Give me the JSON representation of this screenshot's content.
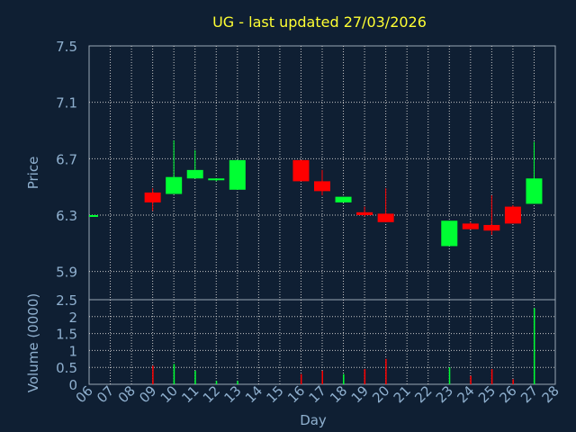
{
  "chart_data": {
    "title": "UG - last updated 27/03/2026",
    "colors": {
      "background": "#0f1f33",
      "up": "#00ff33",
      "down": "#ff0000",
      "title": "#ffff33",
      "text": "#8fb0cf"
    },
    "price_panel": {
      "type": "candlestick",
      "ylabel": "Price",
      "ylim": [
        5.7,
        7.5
      ],
      "yticks": [
        "5.9",
        "6.3",
        "6.7",
        "7.1",
        "7.5"
      ],
      "grid": true,
      "candles": [
        {
          "day": "06",
          "open": 6.3,
          "high": 6.3,
          "low": 6.3,
          "close": 6.3
        },
        {
          "day": "09",
          "open": 6.46,
          "high": 6.49,
          "low": 6.33,
          "close": 6.39
        },
        {
          "day": "10",
          "open": 6.45,
          "high": 6.83,
          "low": 6.45,
          "close": 6.57
        },
        {
          "day": "11",
          "open": 6.56,
          "high": 6.76,
          "low": 6.56,
          "close": 6.62
        },
        {
          "day": "12",
          "open": 6.55,
          "high": 6.56,
          "low": 6.54,
          "close": 6.56
        },
        {
          "day": "13",
          "open": 6.48,
          "high": 6.69,
          "low": 6.48,
          "close": 6.69
        },
        {
          "day": "16",
          "open": 6.69,
          "high": 6.69,
          "low": 6.54,
          "close": 6.54
        },
        {
          "day": "17",
          "open": 6.54,
          "high": 6.62,
          "low": 6.44,
          "close": 6.47
        },
        {
          "day": "18",
          "open": 6.39,
          "high": 6.43,
          "low": 6.39,
          "close": 6.43
        },
        {
          "day": "19",
          "open": 6.32,
          "high": 6.36,
          "low": 6.29,
          "close": 6.3
        },
        {
          "day": "20",
          "open": 6.31,
          "high": 6.49,
          "low": 6.25,
          "close": 6.25
        },
        {
          "day": "23",
          "open": 6.08,
          "high": 6.26,
          "low": 6.08,
          "close": 6.26
        },
        {
          "day": "24",
          "open": 6.24,
          "high": 6.25,
          "low": 6.2,
          "close": 6.2
        },
        {
          "day": "25",
          "open": 6.23,
          "high": 6.44,
          "low": 6.16,
          "close": 6.19
        },
        {
          "day": "26",
          "open": 6.36,
          "high": 6.37,
          "low": 6.24,
          "close": 6.24
        },
        {
          "day": "27",
          "open": 6.38,
          "high": 6.82,
          "low": 6.38,
          "close": 6.56
        }
      ]
    },
    "volume_panel": {
      "type": "bar",
      "ylabel": "Volume (0000)",
      "ylim": [
        0,
        2.5
      ],
      "yticks": [
        "0",
        "0.5",
        "1",
        "1.5",
        "2",
        "2.5"
      ],
      "grid": true,
      "bars": [
        {
          "day": "09",
          "value": 0.55,
          "dir": "down"
        },
        {
          "day": "10",
          "value": 0.6,
          "dir": "up"
        },
        {
          "day": "11",
          "value": 0.4,
          "dir": "up"
        },
        {
          "day": "12",
          "value": 0.1,
          "dir": "up"
        },
        {
          "day": "13",
          "value": 0.1,
          "dir": "up"
        },
        {
          "day": "16",
          "value": 0.3,
          "dir": "down"
        },
        {
          "day": "17",
          "value": 0.4,
          "dir": "down"
        },
        {
          "day": "18",
          "value": 0.3,
          "dir": "up"
        },
        {
          "day": "19",
          "value": 0.45,
          "dir": "down"
        },
        {
          "day": "20",
          "value": 0.75,
          "dir": "down"
        },
        {
          "day": "23",
          "value": 0.5,
          "dir": "up"
        },
        {
          "day": "24",
          "value": 0.25,
          "dir": "down"
        },
        {
          "day": "25",
          "value": 0.45,
          "dir": "down"
        },
        {
          "day": "26",
          "value": 0.15,
          "dir": "down"
        },
        {
          "day": "27",
          "value": 2.25,
          "dir": "up"
        }
      ]
    },
    "x_axis": {
      "xlabel": "Day",
      "ticks": [
        "06",
        "07",
        "08",
        "09",
        "10",
        "11",
        "12",
        "13",
        "14",
        "15",
        "16",
        "17",
        "18",
        "19",
        "20",
        "21",
        "22",
        "23",
        "24",
        "25",
        "26",
        "27",
        "28"
      ]
    }
  }
}
